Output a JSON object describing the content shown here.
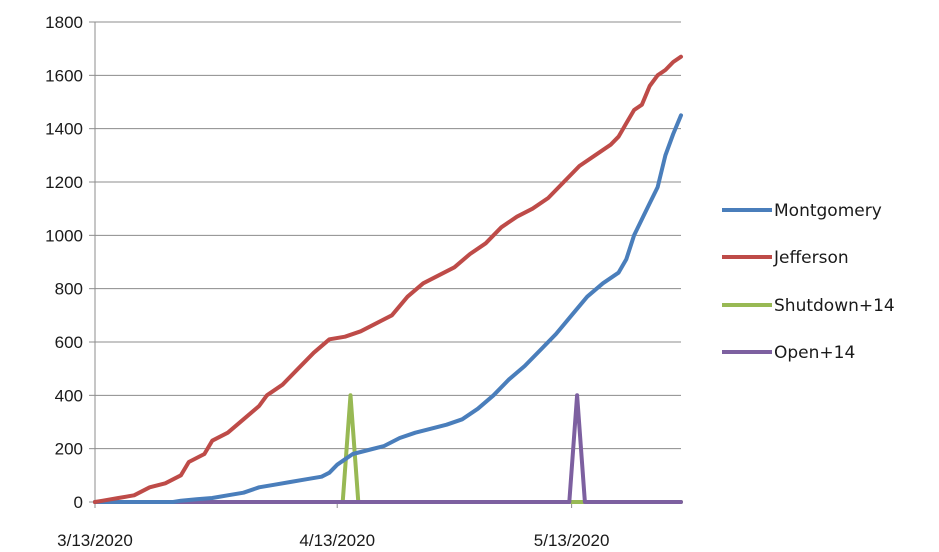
{
  "chart_data": {
    "type": "line",
    "title": "",
    "xlabel": "",
    "ylabel": "",
    "ylim": [
      0,
      1800
    ],
    "yticks": [
      0,
      200,
      400,
      600,
      800,
      1000,
      1200,
      1400,
      1600,
      1800
    ],
    "xticks": [
      "3/13/2020",
      "4/13/2020",
      "5/13/2020"
    ],
    "x_range_days": [
      0,
      75
    ],
    "grid": "horizontal",
    "legend_position": "right",
    "series": [
      {
        "name": "Montgomery",
        "color": "#4a7ebb",
        "points": [
          [
            0,
            0
          ],
          [
            5,
            0
          ],
          [
            10,
            0
          ],
          [
            11,
            5
          ],
          [
            13,
            10
          ],
          [
            15,
            15
          ],
          [
            17,
            25
          ],
          [
            19,
            35
          ],
          [
            21,
            55
          ],
          [
            23,
            65
          ],
          [
            25,
            75
          ],
          [
            27,
            85
          ],
          [
            29,
            95
          ],
          [
            30,
            110
          ],
          [
            31,
            140
          ],
          [
            32,
            160
          ],
          [
            33,
            180
          ],
          [
            35,
            195
          ],
          [
            37,
            210
          ],
          [
            39,
            240
          ],
          [
            41,
            260
          ],
          [
            43,
            275
          ],
          [
            45,
            290
          ],
          [
            47,
            310
          ],
          [
            49,
            350
          ],
          [
            51,
            400
          ],
          [
            53,
            460
          ],
          [
            55,
            510
          ],
          [
            57,
            570
          ],
          [
            59,
            630
          ],
          [
            61,
            700
          ],
          [
            63,
            770
          ],
          [
            65,
            820
          ],
          [
            67,
            860
          ],
          [
            68,
            910
          ],
          [
            69,
            1000
          ],
          [
            70,
            1060
          ],
          [
            71,
            1120
          ],
          [
            72,
            1180
          ],
          [
            73,
            1300
          ],
          [
            74,
            1380
          ],
          [
            75,
            1450
          ]
        ]
      },
      {
        "name": "Jefferson",
        "color": "#be4b48",
        "points": [
          [
            0,
            0
          ],
          [
            1,
            5
          ],
          [
            2,
            10
          ],
          [
            3,
            15
          ],
          [
            5,
            25
          ],
          [
            6,
            40
          ],
          [
            7,
            55
          ],
          [
            9,
            70
          ],
          [
            11,
            100
          ],
          [
            12,
            150
          ],
          [
            14,
            180
          ],
          [
            15,
            230
          ],
          [
            17,
            260
          ],
          [
            19,
            310
          ],
          [
            21,
            360
          ],
          [
            22,
            400
          ],
          [
            24,
            440
          ],
          [
            26,
            500
          ],
          [
            28,
            560
          ],
          [
            30,
            610
          ],
          [
            32,
            620
          ],
          [
            34,
            640
          ],
          [
            36,
            670
          ],
          [
            38,
            700
          ],
          [
            40,
            770
          ],
          [
            42,
            820
          ],
          [
            44,
            850
          ],
          [
            46,
            880
          ],
          [
            48,
            930
          ],
          [
            50,
            970
          ],
          [
            52,
            1030
          ],
          [
            54,
            1070
          ],
          [
            56,
            1100
          ],
          [
            58,
            1140
          ],
          [
            60,
            1200
          ],
          [
            62,
            1260
          ],
          [
            64,
            1300
          ],
          [
            66,
            1340
          ],
          [
            67,
            1370
          ],
          [
            68,
            1420
          ],
          [
            69,
            1470
          ],
          [
            70,
            1490
          ],
          [
            71,
            1560
          ],
          [
            72,
            1600
          ],
          [
            73,
            1620
          ],
          [
            74,
            1650
          ],
          [
            75,
            1670
          ]
        ]
      },
      {
        "name": "Shutdown+14",
        "color": "#98b954",
        "points": [
          [
            0,
            0
          ],
          [
            31.7,
            0
          ],
          [
            32.7,
            400
          ],
          [
            33.7,
            0
          ],
          [
            75,
            0
          ]
        ]
      },
      {
        "name": "Open+14",
        "color": "#7d60a0",
        "points": [
          [
            0,
            0
          ],
          [
            60.7,
            0
          ],
          [
            61.7,
            400
          ],
          [
            62.7,
            0
          ],
          [
            75,
            0
          ]
        ]
      }
    ]
  }
}
